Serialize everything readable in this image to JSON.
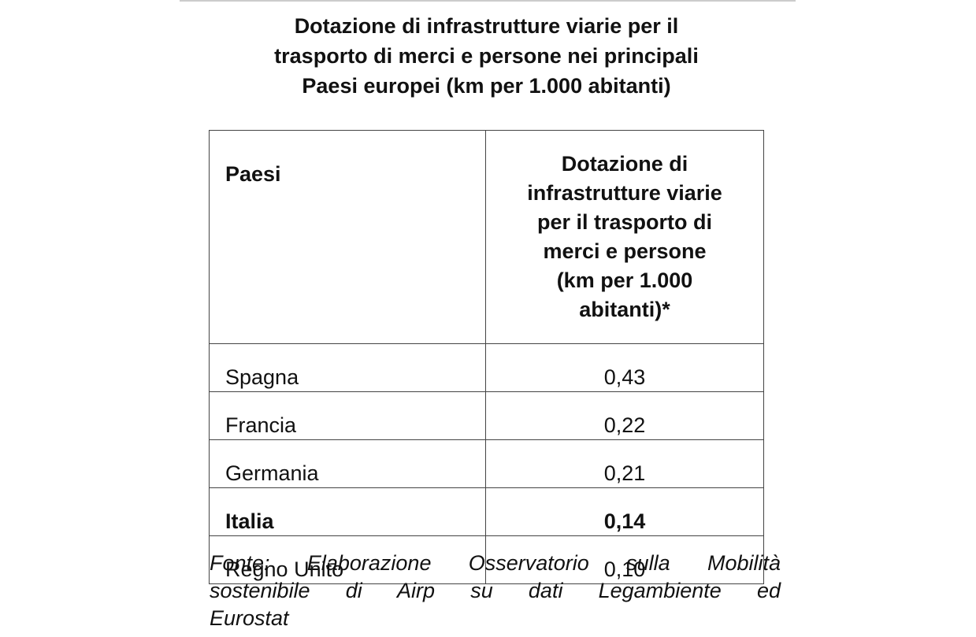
{
  "title_lines": [
    "Dotazione di infrastrutture viarie per il",
    "trasporto di merci e persone nei principali",
    "Paesi europei (km per 1.000 abitanti)"
  ],
  "table": {
    "header": {
      "country": "Paesi",
      "value_lines": [
        "Dotazione di",
        "infrastrutture viarie",
        "per il trasporto di",
        "merci e persone",
        "(km per 1.000",
        "abitanti)*"
      ]
    },
    "rows": [
      {
        "country": "Spagna",
        "value": "0,43",
        "bold": false
      },
      {
        "country": "Francia",
        "value": "0,22",
        "bold": false
      },
      {
        "country": "Germania",
        "value": "0,21",
        "bold": false
      },
      {
        "country": "Italia",
        "value": "0,14",
        "bold": true
      },
      {
        "country": "Regno Unito",
        "value": "0,10",
        "bold": false
      }
    ]
  },
  "footer_lines": [
    "Fonte: Elaborazione Osservatorio sulla Mobilità",
    "sostenibile di Airp su dati Legambiente ed",
    "Eurostat"
  ]
}
